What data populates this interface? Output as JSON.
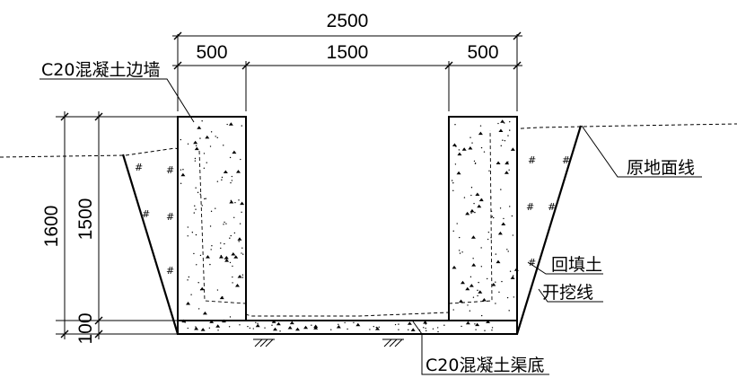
{
  "labels": {
    "wall": "C20混凝土边墙",
    "ground_line": "原地面线",
    "backfill": "回填土",
    "excavation_line": "开挖线",
    "channel_bottom": "C20混凝土渠底"
  },
  "dimensions": {
    "total_width": "2500",
    "left_wall_width": "500",
    "inner_width": "1500",
    "right_wall_width": "500",
    "total_height": "1600",
    "wall_height": "1500",
    "base_thickness": "100"
  },
  "backfill_mark": "#",
  "colors": {
    "line": "#000000",
    "background": "#ffffff"
  }
}
